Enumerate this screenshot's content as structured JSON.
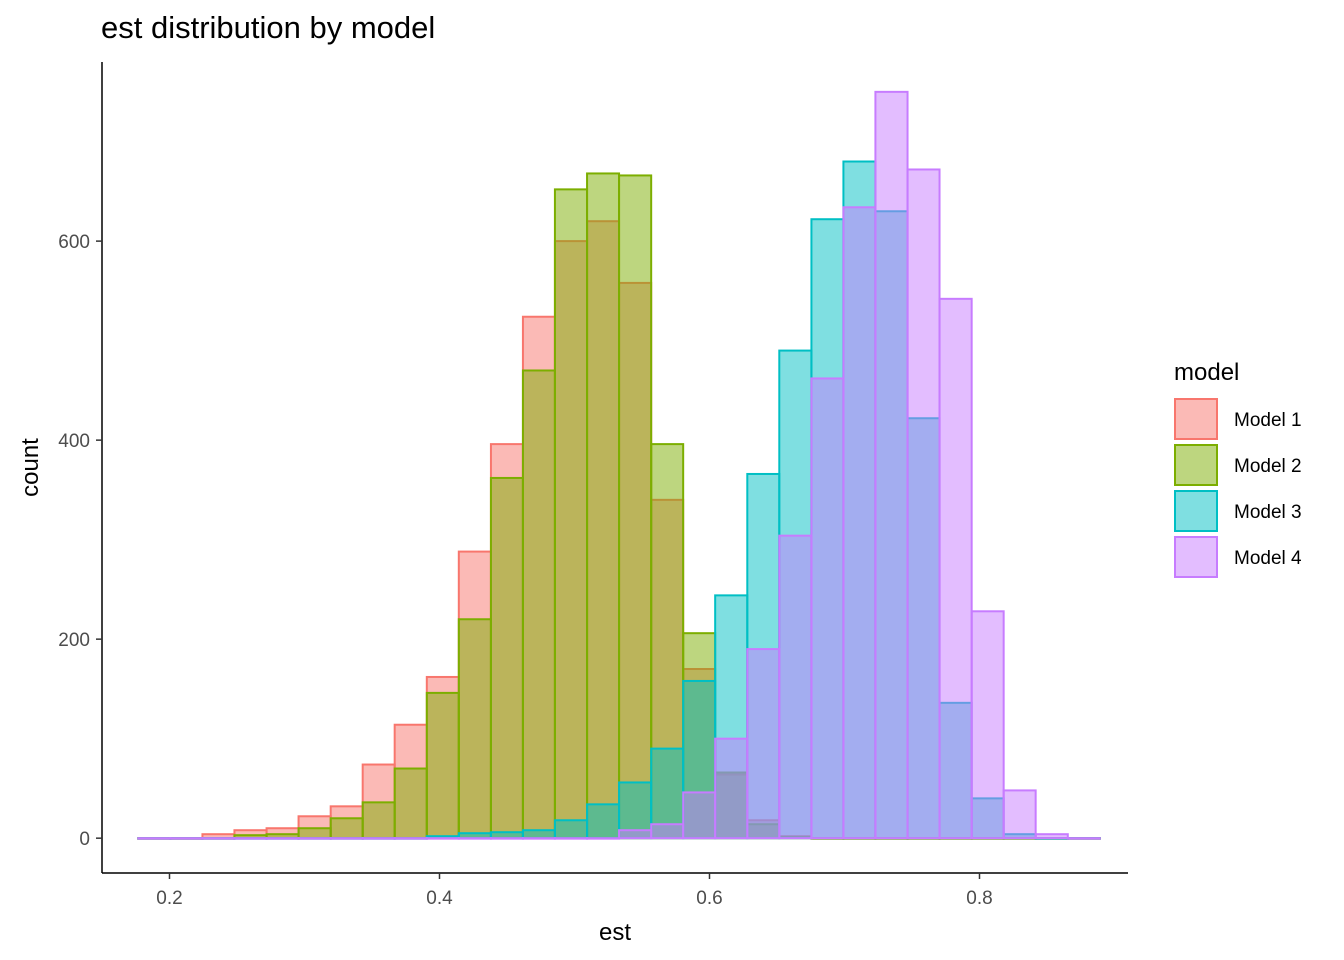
{
  "chart_data": {
    "type": "histogram",
    "title": "est distribution by model",
    "xlabel": "est",
    "ylabel": "count",
    "xlim": [
      0.15,
      0.91
    ],
    "ylim": [
      -35,
      780
    ],
    "xticks": [
      0.2,
      0.4,
      0.6,
      0.8
    ],
    "xtick_labels": [
      "0.2",
      "0.4",
      "0.6",
      "0.8"
    ],
    "yticks": [
      0,
      200,
      400,
      600
    ],
    "ytick_labels": [
      "0",
      "200",
      "400",
      "600"
    ],
    "bin_edges": [
      0.1769,
      0.2007,
      0.2244,
      0.2481,
      0.2719,
      0.2956,
      0.3194,
      0.3431,
      0.3668,
      0.3906,
      0.4143,
      0.4381,
      0.4618,
      0.4855,
      0.5093,
      0.533,
      0.5568,
      0.5805,
      0.6042,
      0.628,
      0.6517,
      0.6755,
      0.6992,
      0.7229,
      0.7467,
      0.7704,
      0.7942,
      0.8179,
      0.8416,
      0.8654,
      0.8891
    ],
    "grid": false,
    "legend": {
      "title": "model",
      "position": "right"
    },
    "series": [
      {
        "name": "Model 1",
        "fill": "#F8766D",
        "stroke": "#F8766D",
        "values": [
          0,
          0,
          4,
          8,
          10,
          22,
          32,
          74,
          114,
          162,
          288,
          396,
          524,
          600,
          620,
          558,
          340,
          170,
          64,
          18,
          2,
          0,
          0,
          0,
          0,
          0,
          0,
          0,
          0,
          0
        ]
      },
      {
        "name": "Model 2",
        "fill": "#7CAE00",
        "stroke": "#7CAE00",
        "values": [
          0,
          0,
          0,
          3,
          4,
          10,
          20,
          36,
          70,
          146,
          220,
          362,
          470,
          652,
          668,
          666,
          396,
          206,
          66,
          14,
          1,
          0,
          0,
          0,
          0,
          0,
          0,
          0,
          0,
          0
        ]
      },
      {
        "name": "Model 3",
        "fill": "#00BFC4",
        "stroke": "#00BFC4",
        "values": [
          0,
          0,
          0,
          0,
          0,
          0,
          0,
          0,
          0,
          2,
          5,
          6,
          8,
          18,
          34,
          56,
          90,
          158,
          244,
          366,
          490,
          622,
          680,
          630,
          422,
          136,
          40,
          4,
          0,
          0
        ]
      },
      {
        "name": "Model 4",
        "fill": "#C77CFF",
        "stroke": "#C77CFF",
        "values": [
          0,
          0,
          0,
          0,
          0,
          0,
          0,
          0,
          0,
          0,
          0,
          0,
          0,
          0,
          0,
          8,
          14,
          46,
          100,
          190,
          304,
          462,
          634,
          750,
          672,
          542,
          228,
          48,
          4,
          0
        ]
      }
    ]
  }
}
